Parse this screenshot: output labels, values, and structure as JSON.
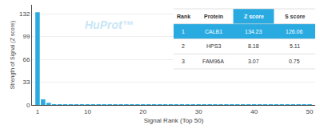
{
  "chart_data": {
    "type": "bar",
    "x": [
      1,
      2,
      3,
      4,
      5,
      6,
      7,
      8,
      9,
      10,
      11,
      12,
      13,
      14,
      15,
      16,
      17,
      18,
      19,
      20,
      21,
      22,
      23,
      24,
      25,
      26,
      27,
      28,
      29,
      30,
      31,
      32,
      33,
      34,
      35,
      36,
      37,
      38,
      39,
      40,
      41,
      42,
      43,
      44,
      45,
      46,
      47,
      48,
      49,
      50
    ],
    "values": [
      134.23,
      8.18,
      3.07,
      0.5,
      0.5,
      0.5,
      0.5,
      0.5,
      0.5,
      0.5,
      0.5,
      0.5,
      0.5,
      0.5,
      0.5,
      0.5,
      0.5,
      0.5,
      0.5,
      0.5,
      0.5,
      0.5,
      0.5,
      0.5,
      0.5,
      0.5,
      0.5,
      0.5,
      0.5,
      0.5,
      0.5,
      0.5,
      0.5,
      0.5,
      0.5,
      0.5,
      0.5,
      0.5,
      0.5,
      0.5,
      0.5,
      0.5,
      0.5,
      0.5,
      0.5,
      0.5,
      0.5,
      0.5,
      0.5,
      0.5
    ],
    "color": "#29ABE2",
    "xlabel": "Signal Rank (Top 50)",
    "ylabel": "Strength of Signal (Z score)",
    "xlim": [
      0,
      51
    ],
    "ylim": [
      0,
      145
    ],
    "xticks": [
      1,
      10,
      20,
      30,
      40,
      50
    ],
    "yticks": [
      0,
      33,
      66,
      99,
      132
    ],
    "grid": true,
    "annotations": [
      "HuProt™"
    ],
    "table": {
      "headers": [
        "Rank",
        "Protein",
        "Z score",
        "S score"
      ],
      "rows": [
        [
          "1",
          "CALB1",
          "134.23",
          "126.06"
        ],
        [
          "2",
          "HPS3",
          "8.18",
          "5.11"
        ],
        [
          "3",
          "FAM96A",
          "3.07",
          "0.75"
        ]
      ]
    }
  }
}
